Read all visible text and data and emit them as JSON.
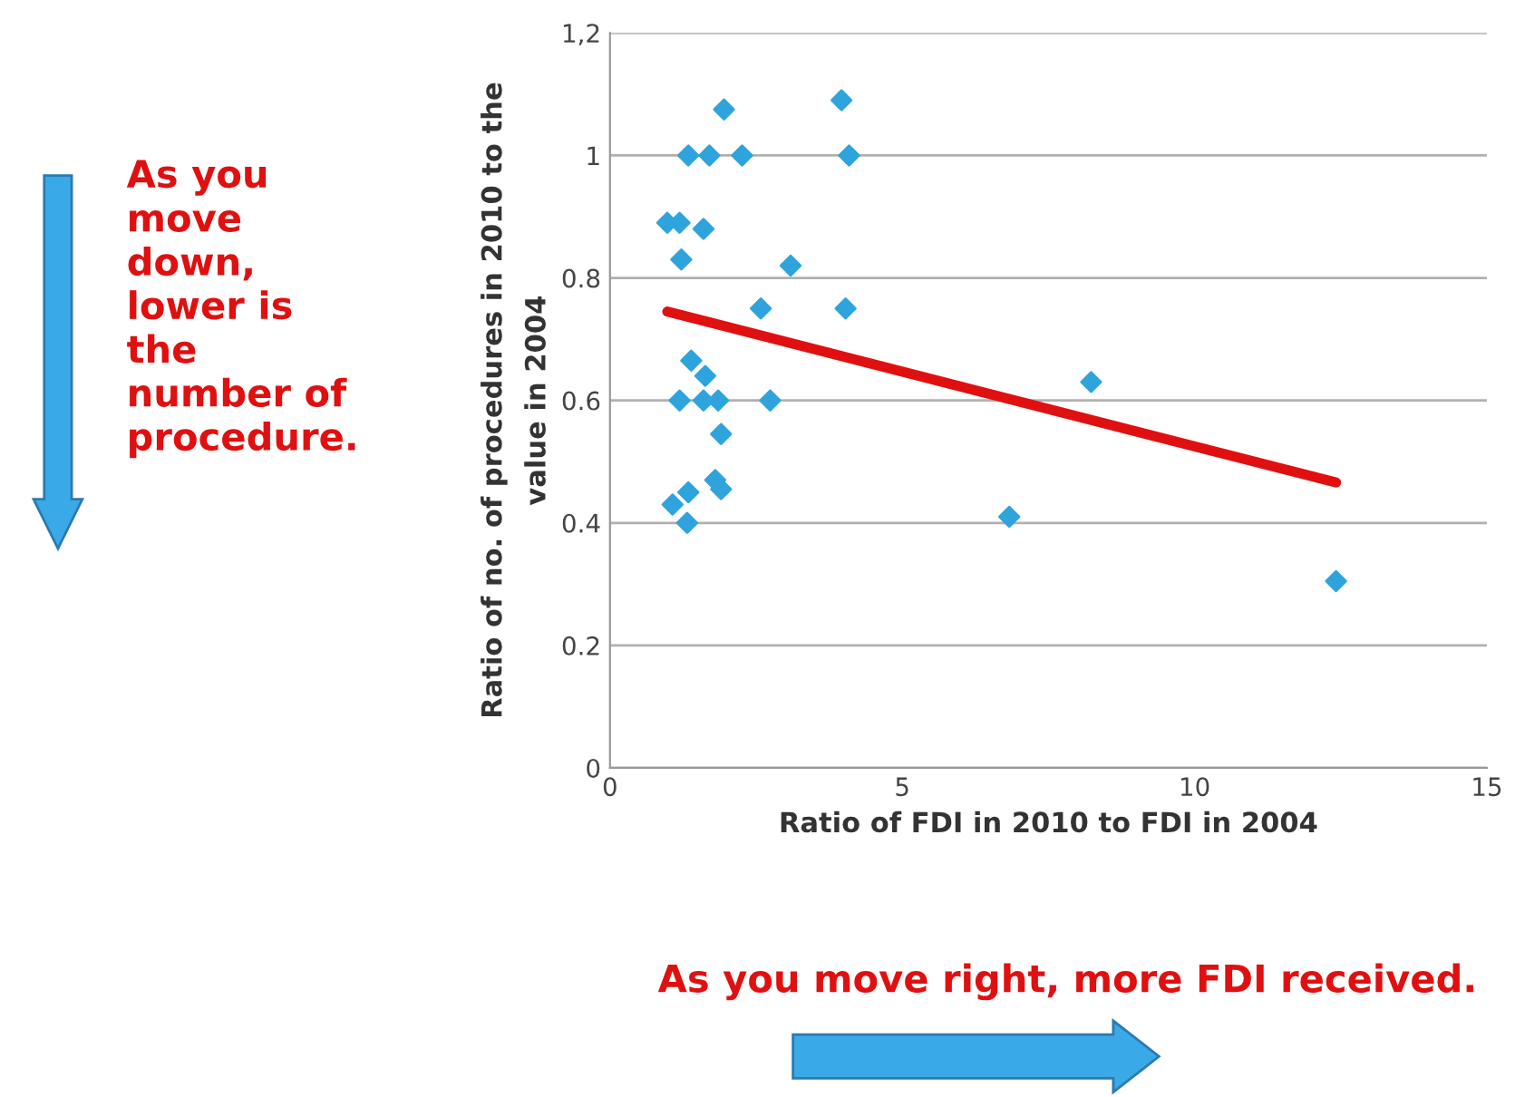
{
  "chart_data": {
    "type": "scatter",
    "xlabel": "Ratio of FDI in 2010 to FDI in 2004",
    "ylabel": "Ratio of no. of procedures in 2010 to the\nvalue in 2004",
    "xlim": [
      0,
      15
    ],
    "xticks": [
      0,
      5,
      10,
      15
    ],
    "ylim": [
      0,
      1.2
    ],
    "yticks": [
      0,
      0.2,
      0.4,
      0.6,
      0.8,
      1,
      {
        "value": 1.2,
        "label": "1,2"
      }
    ],
    "grid": "y",
    "series": [
      {
        "marker": "diamond",
        "color": "#2fa4dc",
        "x": [
          1.95,
          1.34,
          1.7,
          2.26,
          3.96,
          4.09,
          0.98,
          1.19,
          1.6,
          1.22,
          3.09,
          2.58,
          4.03,
          1.39,
          1.63,
          1.19,
          1.6,
          1.85,
          2.74,
          1.9,
          1.8,
          1.9,
          1.34,
          1.07,
          1.32,
          8.23,
          6.83,
          12.42
        ],
        "values": [
          1.075,
          1.0,
          1.0,
          1.0,
          1.09,
          1.0,
          0.89,
          0.89,
          0.88,
          0.83,
          0.82,
          0.75,
          0.75,
          0.665,
          0.64,
          0.6,
          0.6,
          0.6,
          0.6,
          0.545,
          0.47,
          0.455,
          0.45,
          0.43,
          0.4,
          0.63,
          0.41,
          0.305
        ]
      },
      {
        "type": "line",
        "marker": "none",
        "color": "#e01010",
        "x": [
          0.98,
          12.42
        ],
        "values": [
          0.745,
          0.466
        ]
      }
    ],
    "annotations": [
      "As you\nmove\ndown,\nlower is\nthe\nnumber of\nprocedure.",
      "As you move right, more FDI received."
    ]
  }
}
